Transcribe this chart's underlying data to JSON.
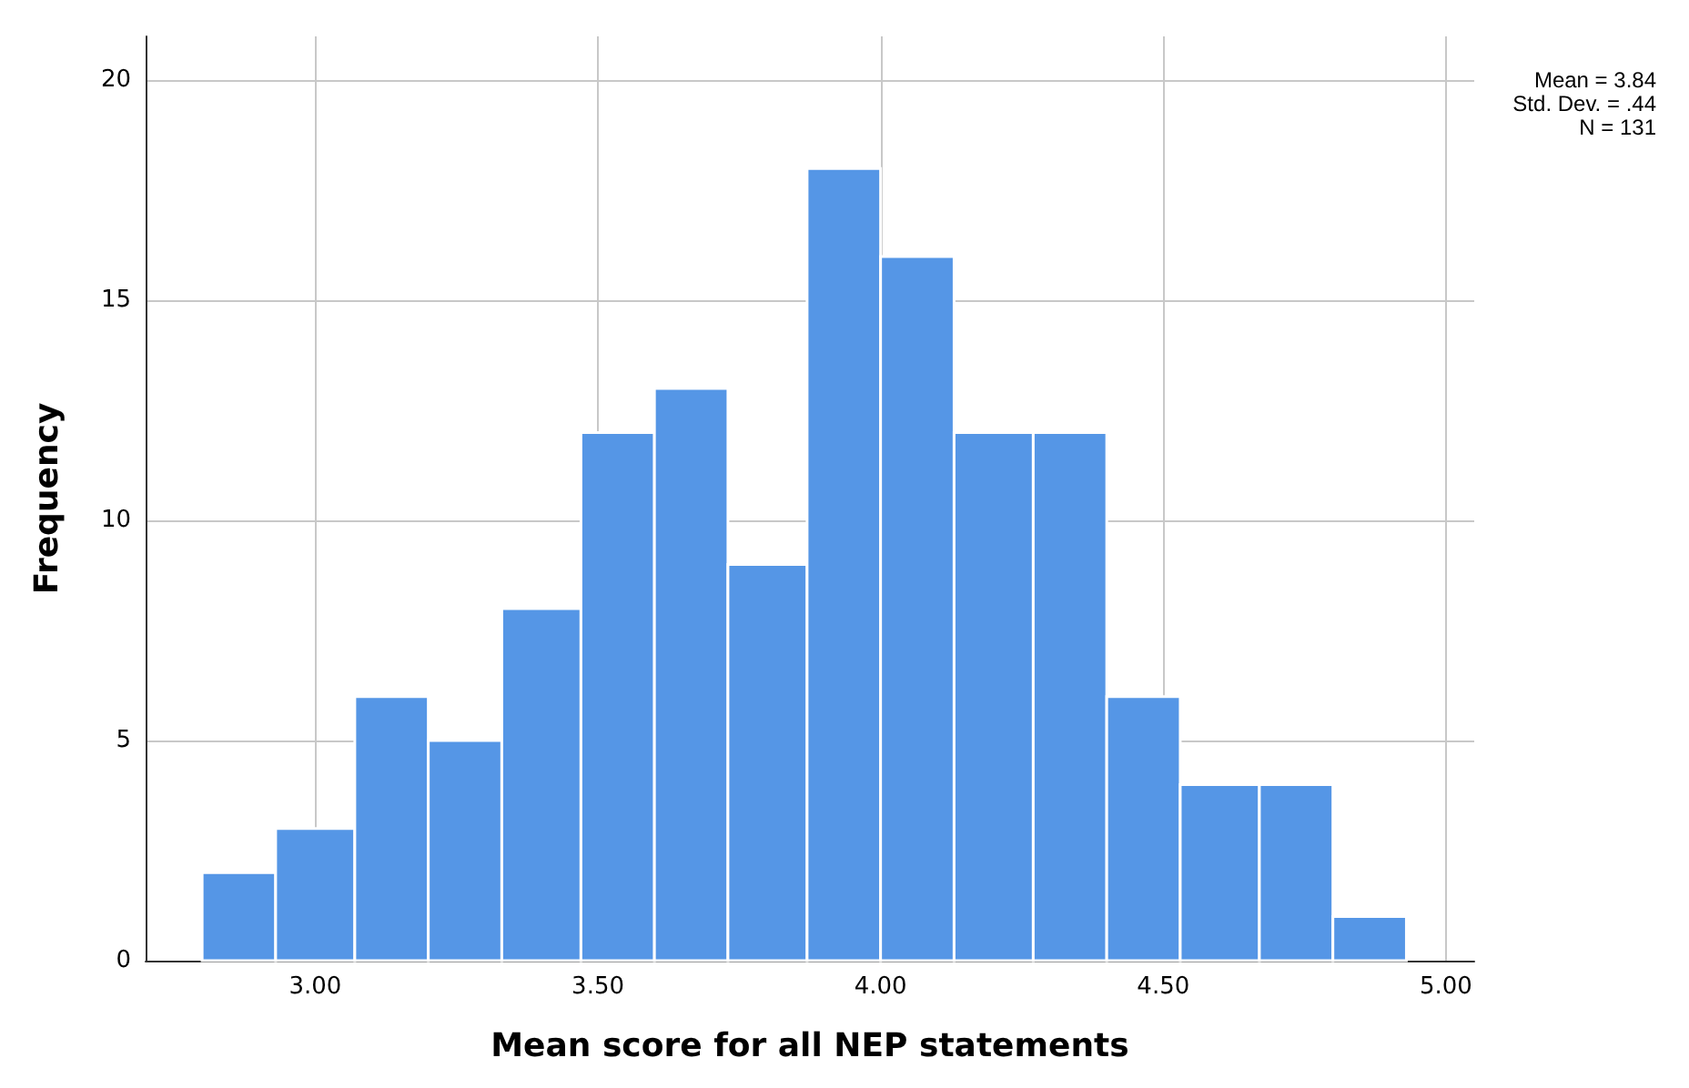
{
  "chart_data": {
    "type": "histogram",
    "xlabel": "Mean score for all NEP statements",
    "ylabel": "Frequency",
    "bins": [
      2.8,
      2.93,
      3.07,
      3.2,
      3.33,
      3.47,
      3.6,
      3.73,
      3.87,
      4.0,
      4.13,
      4.27,
      4.4,
      4.53,
      4.67,
      4.8,
      4.93
    ],
    "values": [
      2,
      3,
      6,
      5,
      8,
      12,
      13,
      9,
      18,
      16,
      12,
      12,
      6,
      4,
      4,
      1
    ],
    "color": "#5596e6",
    "xlim": [
      2.7,
      5.05
    ],
    "xticks": [
      {
        "value": 3,
        "label": "3.00"
      },
      {
        "value": 3.5,
        "label": "3.50"
      },
      {
        "value": 4,
        "label": "4.00"
      },
      {
        "value": 4.5,
        "label": "4.50"
      },
      {
        "value": 5,
        "label": "5.00"
      }
    ],
    "ylim": [
      0,
      21
    ],
    "yticks": [
      0,
      5,
      10,
      15,
      20
    ],
    "grid": true,
    "annotations": [
      "Mean = 3.84",
      "Std. Dev. = .44",
      "N = 131"
    ]
  }
}
